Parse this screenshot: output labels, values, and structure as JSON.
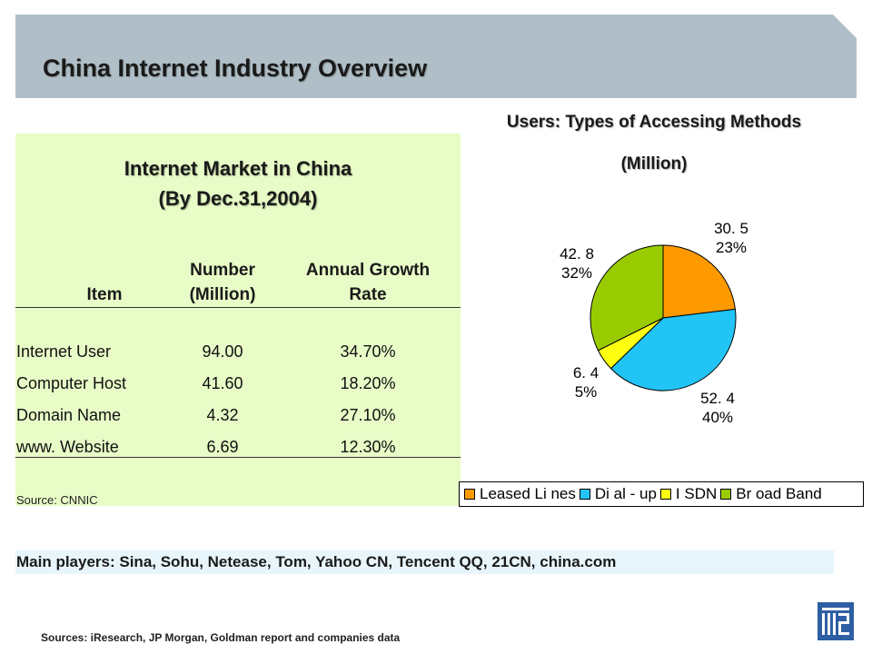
{
  "title": "China Internet Industry Overview",
  "table": {
    "title_line1": "Internet Market in China",
    "title_line2": "(By Dec.31,2004)",
    "headers": {
      "item": "Item",
      "number_l1": "Number",
      "number_l2": "(Million)",
      "growth_l1": "Annual Growth",
      "growth_l2": "Rate"
    },
    "rows": [
      {
        "item": "Internet User",
        "number": "94.00",
        "growth": "34.70%"
      },
      {
        "item": "Computer Host",
        "number": "41.60",
        "growth": "18.20%"
      },
      {
        "item": "Domain Name",
        "number": "4.32",
        "growth": "27.10%"
      },
      {
        "item": "www. Website",
        "number": "6.69",
        "growth": "12.30%"
      }
    ],
    "source": "Source: CNNIC"
  },
  "chart_data": {
    "type": "pie",
    "title": "Users: Types of Accessing Methods",
    "subtitle": "(Million)",
    "categories": [
      "Leased Lines",
      "Dial-up",
      "ISDN",
      "Broad Band"
    ],
    "values": [
      30.5,
      52.4,
      6.4,
      42.8
    ],
    "value_labels": [
      "30. 5",
      "52. 4",
      "6. 4",
      "42. 8"
    ],
    "percent_labels": [
      "23%",
      "40%",
      "5%",
      "32%"
    ],
    "legend_labels": [
      "Leased Li nes",
      "Di al - up",
      "I SDN",
      "Br oad Band"
    ],
    "colors": [
      "#ff9900",
      "#22c4f5",
      "#ffff11",
      "#99cc00"
    ],
    "legend": "bottom"
  },
  "players": "Main players: Sina, Sohu, Netease, Tom, Yahoo CN, Tencent QQ, 21CN, china.com",
  "sources": "Sources: iResearch, JP Morgan, Goldman report and companies data"
}
